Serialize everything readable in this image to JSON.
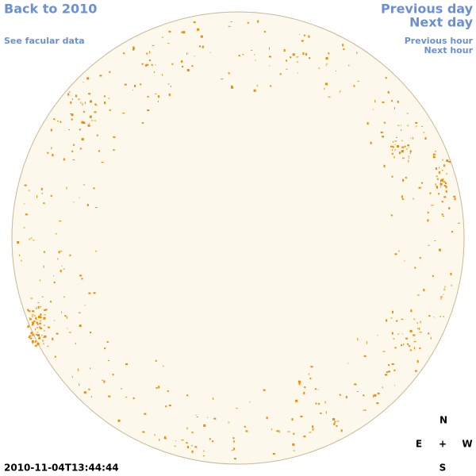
{
  "nav": {
    "back": "Back to 2010",
    "facular": "See facular data",
    "previous_day": "Previous day",
    "next_day": "Next day",
    "previous_hour": "Previous hour",
    "next_hour": "Next hour"
  },
  "timestamp": "2010-11-04T13:44:44",
  "compass": {
    "north": "N",
    "east": "E",
    "center": "+",
    "west": "W",
    "south": "S"
  }
}
